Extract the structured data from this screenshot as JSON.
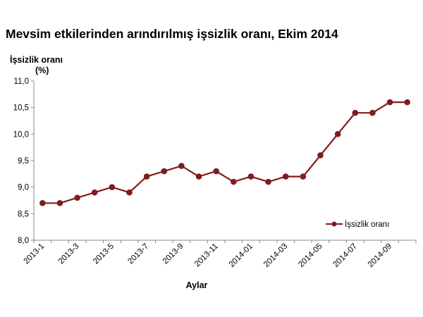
{
  "chart_data": {
    "type": "line",
    "title": "Mevsim etkilerinden arındırılmış işsizlik oranı, Ekim 2014",
    "ylabel_line1": "İşsizlik oranı",
    "ylabel_line2": "(%)",
    "xlabel": "Aylar",
    "ylim": [
      8.0,
      11.0
    ],
    "yticks": [
      "8,0",
      "8,5",
      "9,0",
      "9,5",
      "10,0",
      "10,5",
      "11,0"
    ],
    "ytick_values": [
      8.0,
      8.5,
      9.0,
      9.5,
      10.0,
      10.5,
      11.0
    ],
    "x_tick_labels": [
      "2013-1",
      "2013-3",
      "2013-5",
      "2013-7",
      "2013-9",
      "2013-11",
      "2014-01",
      "2014-03",
      "2014-05",
      "2014-07",
      "2014-09"
    ],
    "x": [
      "2013-1",
      "2013-2",
      "2013-3",
      "2013-4",
      "2013-5",
      "2013-6",
      "2013-7",
      "2013-8",
      "2013-9",
      "2013-10",
      "2013-11",
      "2013-12",
      "2014-01",
      "2014-02",
      "2014-03",
      "2014-04",
      "2014-05",
      "2014-06",
      "2014-07",
      "2014-08",
      "2014-09",
      "2014-10"
    ],
    "series": [
      {
        "name": "İşsizlik oranı",
        "color": "#7f1d1d",
        "values": [
          8.7,
          8.7,
          8.8,
          8.9,
          9.0,
          8.9,
          9.2,
          9.3,
          9.4,
          9.2,
          9.3,
          9.1,
          9.2,
          9.1,
          9.2,
          9.2,
          9.6,
          10.0,
          10.4,
          10.4,
          10.6,
          10.6
        ]
      }
    ],
    "grid": false,
    "legend_position": "bottom-right"
  }
}
